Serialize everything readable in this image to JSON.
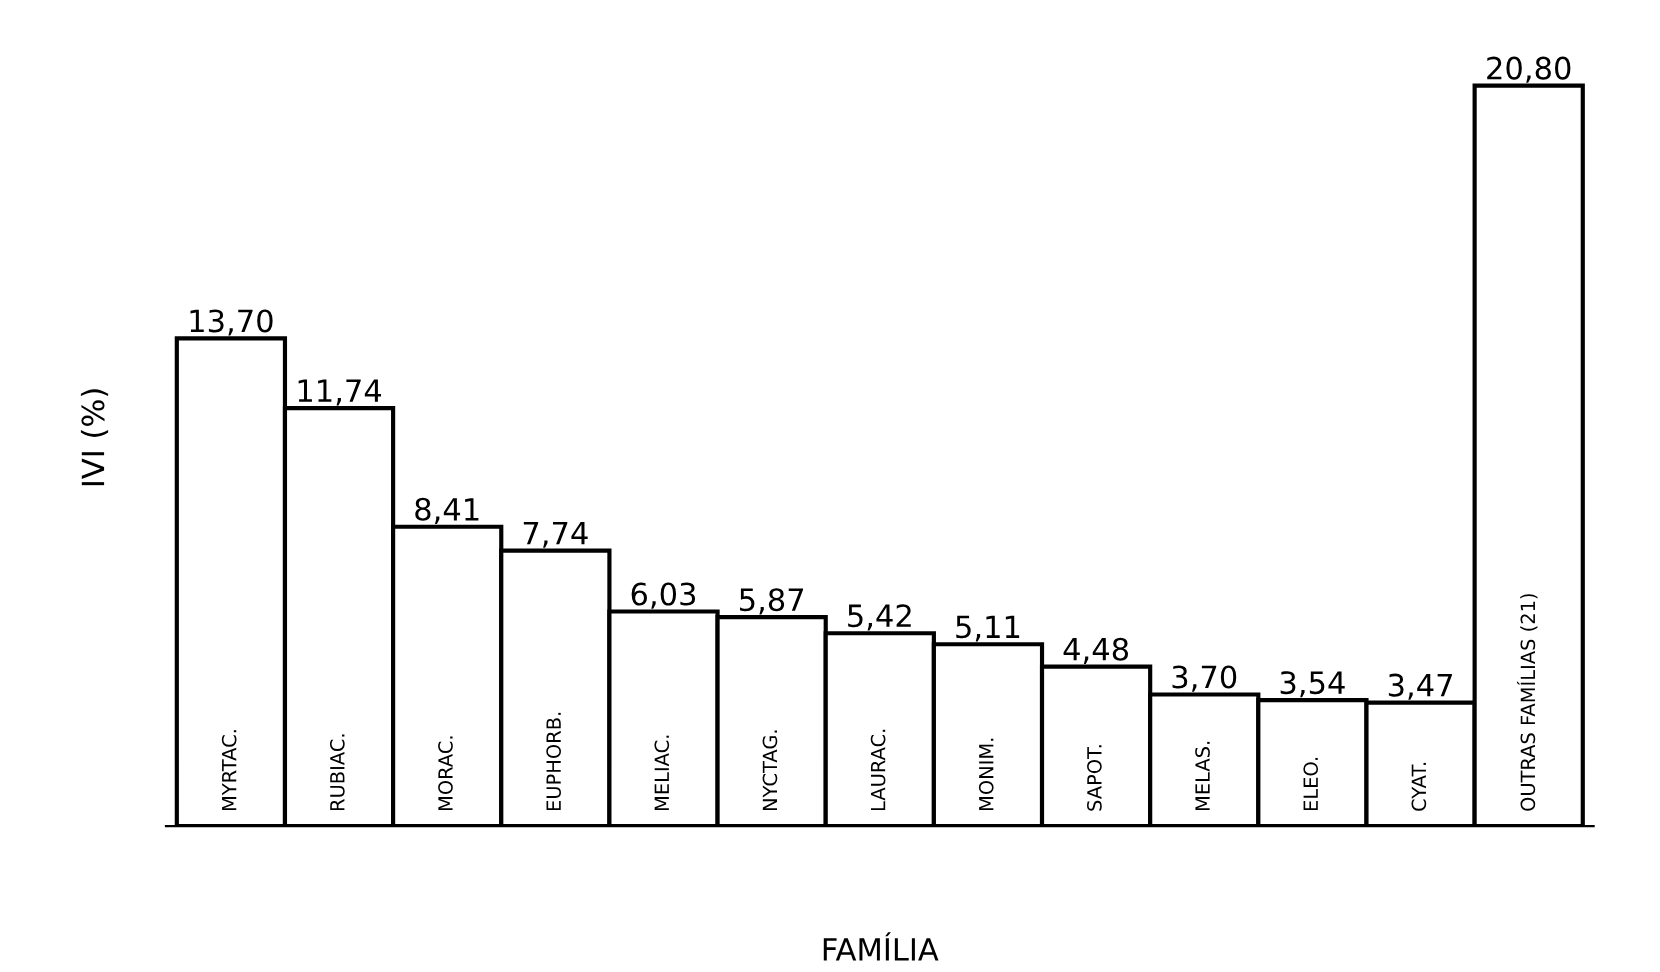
{
  "chart_data": {
    "type": "bar",
    "xlabel": "FAMÍLIA",
    "ylabel": "IVI (%)",
    "categories": [
      "MYRTAC.",
      "RUBIAC.",
      "MORAC.",
      "EUPHORB.",
      "MELIAC.",
      "NYCTAG.",
      "LAURAC.",
      "MONIM.",
      "SAPOT.",
      "MELAS.",
      "ELEO.",
      "CYAT.",
      "OUTRAS FAMÍLIAS (21)"
    ],
    "values": [
      13.7,
      11.74,
      8.41,
      7.74,
      6.03,
      5.87,
      5.42,
      5.11,
      4.48,
      3.7,
      3.54,
      3.47,
      20.8
    ],
    "value_labels": [
      "13,70",
      "11,74",
      "8,41",
      "7,74",
      "6,03",
      "5,87",
      "5,42",
      "5,11",
      "4,48",
      "3,70",
      "3,54",
      "3,47",
      "20,80"
    ],
    "color": "#ffffff"
  }
}
